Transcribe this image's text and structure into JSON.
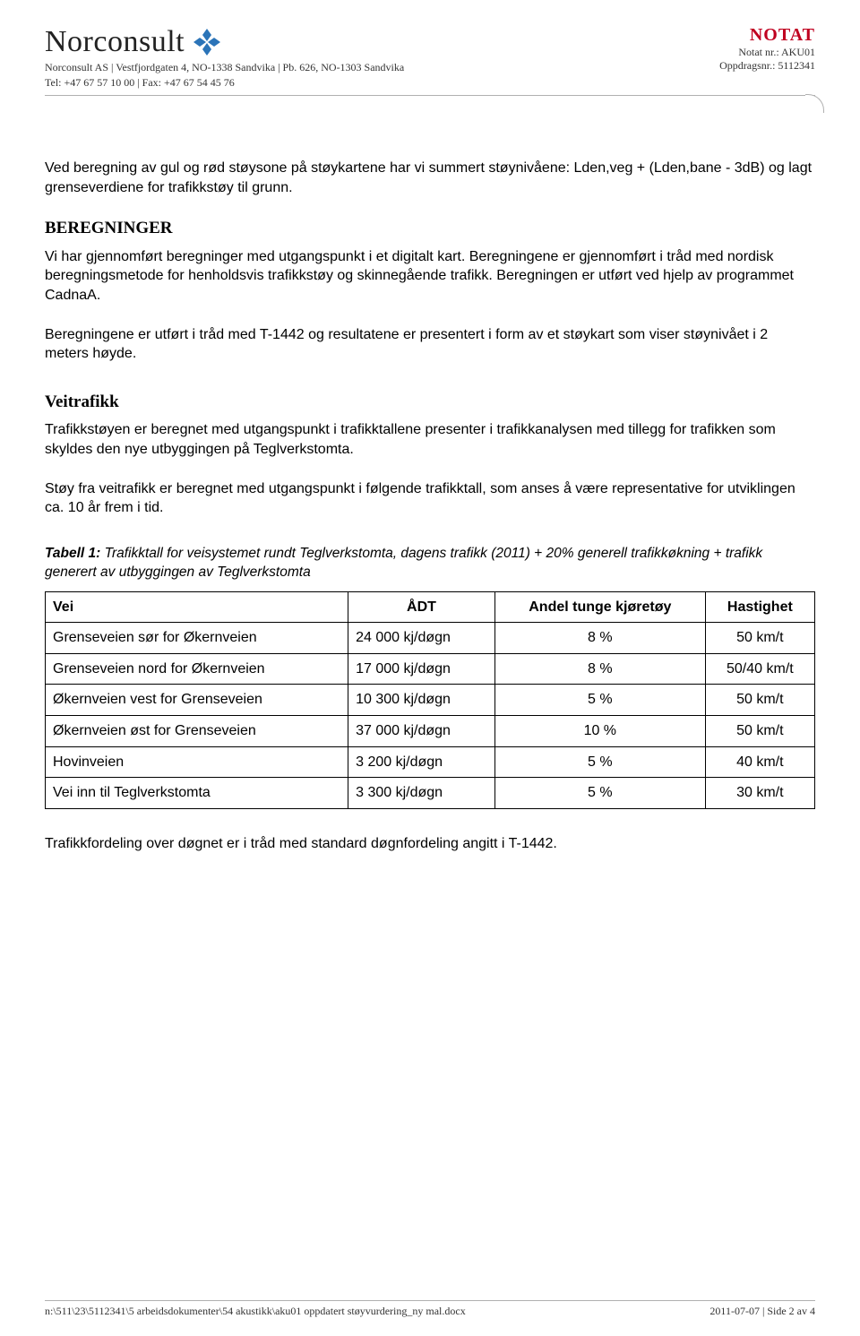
{
  "header": {
    "company": "Norconsult",
    "address_line": "Norconsult AS | Vestfjordgaten 4, NO-1338 Sandvika | Pb. 626, NO-1303 Sandvika",
    "contact_line": "Tel: +47 67 57 10 00 | Fax: +47 67 54 45 76",
    "notat": "NOTAT",
    "notat_nr": "Notat nr.: AKU01",
    "oppdrag_nr": "Oppdragsnr.: 5112341",
    "brand_color": "#2b74b8"
  },
  "body": {
    "intro": "Ved beregning av gul og rød støysone på støykartene har vi summert støynivåene: Lden,veg + (Lden,bane - 3dB) og lagt grenseverdiene for trafikkstøy til grunn.",
    "beregninger_heading": "BEREGNINGER",
    "beregninger_p1": "Vi har gjennomført beregninger med utgangspunkt i et digitalt kart. Beregningene er gjennomført i tråd med nordisk beregningsmetode for henholdsvis trafikkstøy og skinnegående trafikk. Beregningen er utført ved hjelp av programmet CadnaA.",
    "beregninger_p2": "Beregningene er utført i tråd med T-1442 og resultatene er presentert i form av et støykart som viser støynivået i 2 meters høyde.",
    "veitrafikk_heading": "Veitrafikk",
    "veitrafikk_p1": "Trafikkstøyen er beregnet med utgangspunkt i trafikktallene presenter i trafikkanalysen med tillegg for trafikken som skyldes den nye utbyggingen på Teglverkstomta.",
    "veitrafikk_p2": "Støy fra veitrafikk er beregnet med utgangspunkt i følgende trafikktall, som anses å være representative for utviklingen ca. 10 år frem i tid.",
    "table_caption": "Tabell 1: Trafikktall for veisystemet rundt Teglverkstomta, dagens trafikk (2011) + 20% generell trafikkøkning + trafikk generert av utbyggingen av Teglverkstomta",
    "after_table": "Trafikkfordeling over døgnet er i tråd med standard døgnfordeling angitt i T-1442."
  },
  "table": {
    "columns": [
      "Vei",
      "ÅDT",
      "Andel tunge kjøretøy",
      "Hastighet"
    ],
    "rows": [
      [
        "Grenseveien sør for Økernveien",
        "24 000 kj/døgn",
        "8 %",
        "50 km/t"
      ],
      [
        "Grenseveien nord for Økernveien",
        "17 000 kj/døgn",
        "8 %",
        "50/40 km/t"
      ],
      [
        "Økernveien vest for Grenseveien",
        "10 300 kj/døgn",
        "5 %",
        "50 km/t"
      ],
      [
        "Økernveien øst for Grenseveien",
        "37 000 kj/døgn",
        "10 %",
        "50 km/t"
      ],
      [
        "Hovinveien",
        "3 200 kj/døgn",
        "5 %",
        "40 km/t"
      ],
      [
        "Vei inn til Teglverkstomta",
        "3 300 kj/døgn",
        "5 %",
        "30 km/t"
      ]
    ],
    "col_align": [
      "left",
      "left",
      "center",
      "center"
    ]
  },
  "footer": {
    "path": "n:\\511\\23\\5112341\\5 arbeidsdokumenter\\54 akustikk\\aku01 oppdatert støyvurdering_ny mal.docx",
    "date_page": "2011-07-07 | Side 2 av 4"
  }
}
